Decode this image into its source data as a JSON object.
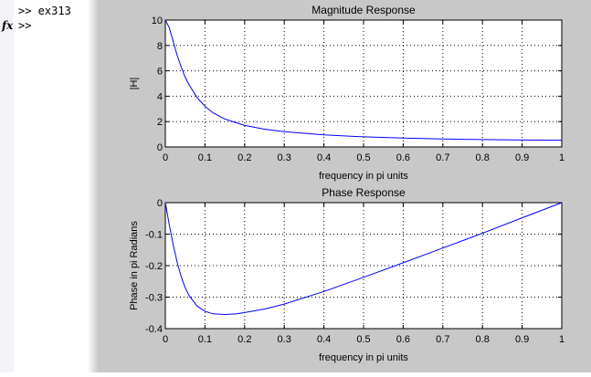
{
  "command_window": {
    "lines": [
      ">> ex313",
      ">>"
    ],
    "fx_label": "fx"
  },
  "colors": {
    "figure_bg": "#c8c8c8",
    "axes_bg": "#ffffff",
    "line": "#0000ff"
  },
  "chart_data": [
    {
      "type": "line",
      "title": "Magnitude Response",
      "xlabel": "frequency in pi units",
      "ylabel": "|H|",
      "xlim": [
        0,
        1
      ],
      "ylim": [
        0,
        10
      ],
      "xticks": [
        0,
        0.1,
        0.2,
        0.3,
        0.4,
        0.5,
        0.6,
        0.7,
        0.8,
        0.9,
        1
      ],
      "xtick_labels": [
        "0",
        "0.1",
        "0.2",
        "0.3",
        "0.4",
        "0.5",
        "0.6",
        "0.7",
        "0.8",
        "0.9",
        "1"
      ],
      "yticks": [
        0,
        2,
        4,
        6,
        8,
        10
      ],
      "ytick_labels": [
        "0",
        "2",
        "4",
        "6",
        "8",
        "10"
      ],
      "grid": true,
      "series": [
        {
          "name": "|H|",
          "x": [
            0,
            0.01,
            0.02,
            0.03,
            0.04,
            0.05,
            0.06,
            0.08,
            0.1,
            0.12,
            0.15,
            0.2,
            0.25,
            0.3,
            0.4,
            0.5,
            0.6,
            0.7,
            0.8,
            0.9,
            1
          ],
          "y": [
            10,
            9.4,
            8.3,
            7.2,
            6.3,
            5.5,
            4.9,
            3.9,
            3.2,
            2.7,
            2.2,
            1.7,
            1.4,
            1.2,
            0.95,
            0.8,
            0.7,
            0.63,
            0.58,
            0.55,
            0.53
          ]
        }
      ]
    },
    {
      "type": "line",
      "title": "Phase Response",
      "xlabel": "frequency in pi units",
      "ylabel": "Phase in pi Radians",
      "xlim": [
        0,
        1
      ],
      "ylim": [
        -0.4,
        0
      ],
      "xticks": [
        0,
        0.1,
        0.2,
        0.3,
        0.4,
        0.5,
        0.6,
        0.7,
        0.8,
        0.9,
        1
      ],
      "xtick_labels": [
        "0",
        "0.1",
        "0.2",
        "0.3",
        "0.4",
        "0.5",
        "0.6",
        "0.7",
        "0.8",
        "0.9",
        "1"
      ],
      "yticks": [
        -0.4,
        -0.3,
        -0.2,
        -0.1,
        0
      ],
      "ytick_labels": [
        "-0.4",
        "-0.3",
        "-0.2",
        "-0.1",
        "0"
      ],
      "grid": true,
      "series": [
        {
          "name": "phase",
          "x": [
            0,
            0.01,
            0.02,
            0.03,
            0.04,
            0.05,
            0.06,
            0.08,
            0.1,
            0.12,
            0.15,
            0.18,
            0.2,
            0.25,
            0.3,
            0.4,
            0.5,
            0.6,
            0.7,
            0.8,
            0.9,
            1
          ],
          "y": [
            0,
            -0.07,
            -0.135,
            -0.19,
            -0.235,
            -0.27,
            -0.295,
            -0.328,
            -0.345,
            -0.353,
            -0.355,
            -0.353,
            -0.349,
            -0.338,
            -0.322,
            -0.282,
            -0.237,
            -0.191,
            -0.144,
            -0.097,
            -0.048,
            0
          ]
        }
      ]
    }
  ]
}
